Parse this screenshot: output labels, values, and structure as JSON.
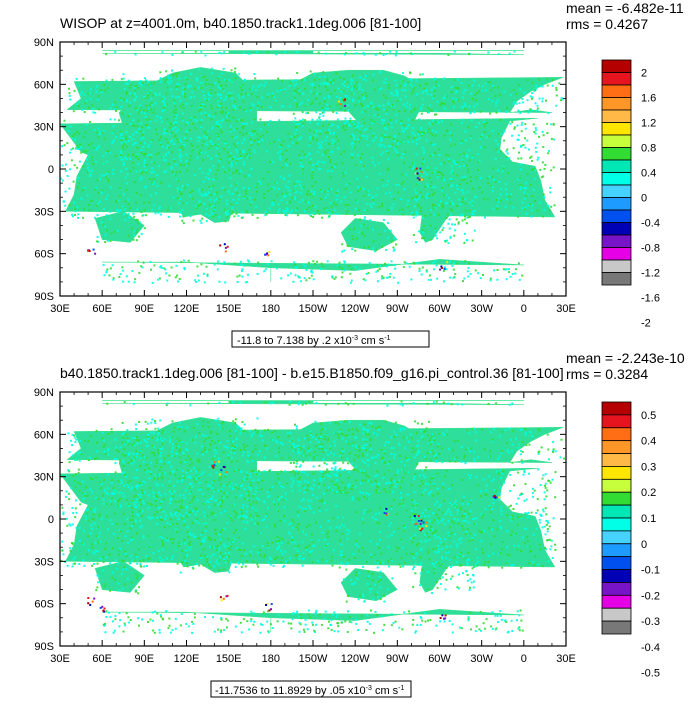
{
  "panels": [
    {
      "title": "WISOP at z=4001.0m, b40.1850.track1.1deg.006 [81-100]",
      "stats": {
        "mean": "mean = -6.482e-11",
        "rms": "rms = 0.4267"
      },
      "contour_info": {
        "prefix": "-11.8 to 7.138 by .2 x10",
        "exp": "-3",
        "unit": " cm s",
        "unit_exp": "-1"
      },
      "colorbar": {
        "labels": [
          "2",
          "1.6",
          "1.2",
          "0.8",
          "0.4",
          "0",
          "-0.4",
          "-0.8",
          "-1.2",
          "-1.6",
          "-2"
        ],
        "colors": [
          "#b40000",
          "#e6141e",
          "#ff6e14",
          "#ff9628",
          "#ffb946",
          "#ffe600",
          "#c8ff3c",
          "#32dc32",
          "#00e6b4",
          "#00ffe6",
          "#46d2ff",
          "#1e9bff",
          "#0050f0",
          "#0000b4",
          "#7814c8",
          "#e600e6",
          "#c8c8c8",
          "#787878"
        ]
      }
    },
    {
      "title": "b40.1850.track1.1deg.006 [81-100] - b.e15.B1850.f09_g16.pi_control.36 [81-100]",
      "stats": {
        "mean": "mean = -2.243e-10",
        "rms": "rms = 0.3284"
      },
      "contour_info": {
        "prefix": "-11.7536 to 11.8929 by .05 x10",
        "exp": "-3",
        "unit": " cm s",
        "unit_exp": "-1"
      },
      "colorbar": {
        "labels": [
          "0.5",
          "0.4",
          "0.3",
          "0.2",
          "0.1",
          "0",
          "-0.1",
          "-0.2",
          "-0.3",
          "-0.4",
          "-0.5"
        ],
        "colors": [
          "#b40000",
          "#e6141e",
          "#ff6e14",
          "#ff9628",
          "#ffb946",
          "#ffe600",
          "#c8ff3c",
          "#32dc32",
          "#00e6b4",
          "#00ffe6",
          "#46d2ff",
          "#1e9bff",
          "#0050f0",
          "#0000b4",
          "#7814c8",
          "#e600e6",
          "#c8c8c8",
          "#787878"
        ]
      }
    }
  ],
  "chart_data": [
    {
      "type": "heatmap",
      "title": "WISOP at z=4001.0m, b40.1850.track1.1deg.006 [81-100]",
      "x_ticks": [
        "30E",
        "60E",
        "90E",
        "120E",
        "150E",
        "180",
        "150W",
        "120W",
        "90W",
        "60W",
        "30W",
        "0",
        "30E"
      ],
      "y_ticks": [
        "90N",
        "60N",
        "30N",
        "0",
        "30S",
        "60S",
        "90S"
      ],
      "xlim": [
        30,
        390
      ],
      "ylim": [
        -90,
        90
      ],
      "levels": [
        -2,
        2
      ],
      "level_spacing": 0.2,
      "mean": -6.482e-11,
      "rms": 0.4267
    },
    {
      "type": "heatmap",
      "title": "b40.1850.track1.1deg.006 [81-100] - b.e15.B1850.f09_g16.pi_control.36 [81-100]",
      "x_ticks": [
        "30E",
        "60E",
        "90E",
        "120E",
        "150E",
        "180",
        "150W",
        "120W",
        "90W",
        "60W",
        "30W",
        "0",
        "30E"
      ],
      "y_ticks": [
        "90N",
        "60N",
        "30N",
        "0",
        "30S",
        "60S",
        "90S"
      ],
      "xlim": [
        30,
        390
      ],
      "ylim": [
        -90,
        90
      ],
      "levels": [
        -0.5,
        0.5
      ],
      "level_spacing": 0.05,
      "mean": -2.243e-10,
      "rms": 0.3284
    }
  ]
}
